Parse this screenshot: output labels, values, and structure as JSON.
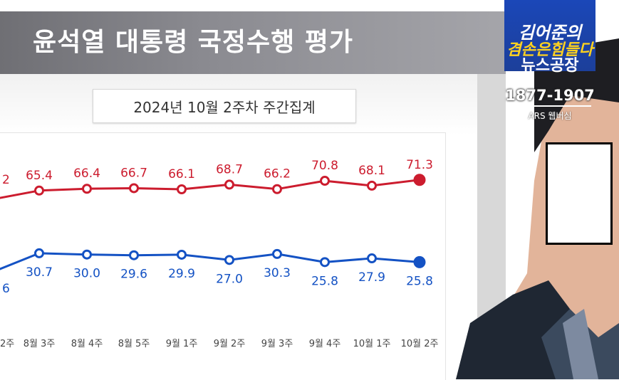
{
  "header": {
    "title": "윤석열 대통령 국정수행 평가",
    "subtitle": "2024년 10월 2주차 주간집계"
  },
  "logo": {
    "top": "김어준의",
    "mid": "겸손은힘들다",
    "bottom": "뉴스공장"
  },
  "contact": {
    "phone": "1877-1907",
    "note": "ARS 웹버심"
  },
  "colors": {
    "negative": "#cc1c2e",
    "positive": "#1452c4"
  },
  "chart_data": {
    "type": "line",
    "categories": [
      "2주",
      "8월 3주",
      "8월 4주",
      "8월 5주",
      "9월 1주",
      "9월 2주",
      "9월 3주",
      "9월 4주",
      "10월 1주",
      "10월 2주"
    ],
    "series": [
      {
        "values": [
          null,
          65.4,
          66.4,
          66.7,
          66.1,
          68.7,
          66.2,
          70.8,
          68.1,
          71.3
        ],
        "labels": [
          "2",
          "65.4",
          "66.4",
          "66.7",
          "66.1",
          "68.7",
          "66.2",
          "70.8",
          "68.1",
          "71.3"
        ]
      },
      {
        "values": [
          null,
          30.7,
          30.0,
          29.6,
          29.9,
          27.0,
          30.3,
          25.8,
          27.9,
          25.8
        ],
        "labels": [
          "6",
          "30.7",
          "30.0",
          "29.6",
          "29.9",
          "27.0",
          "30.3",
          "25.8",
          "27.9",
          "25.8"
        ]
      }
    ]
  }
}
